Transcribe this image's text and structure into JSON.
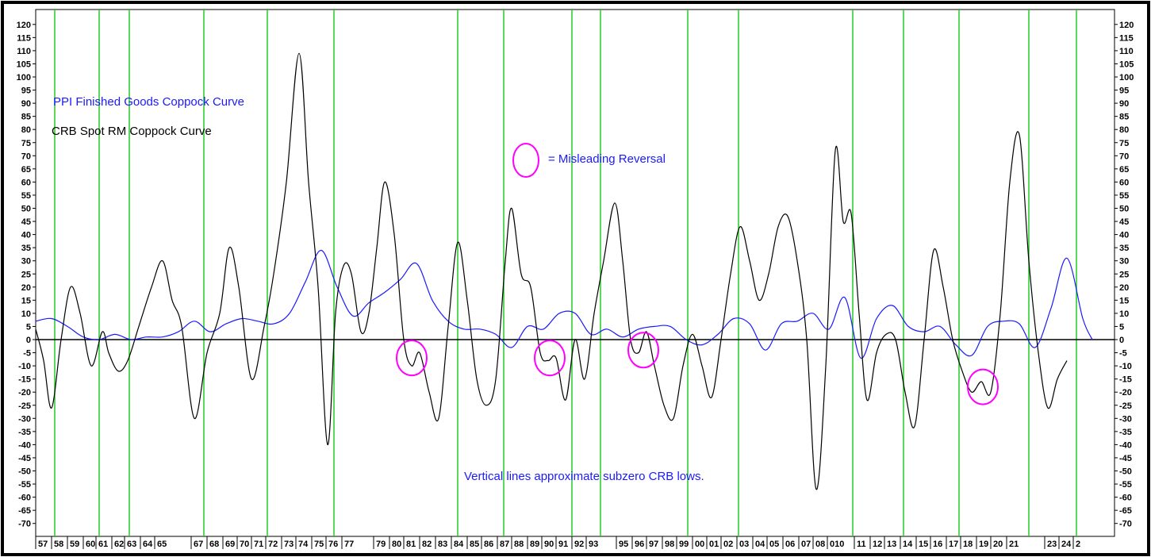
{
  "chart_data": {
    "type": "line",
    "title": "",
    "xlabel": "",
    "ylabel": "",
    "ylim": [
      -72,
      122
    ],
    "y_ticks": [
      120,
      115,
      110,
      105,
      100,
      95,
      90,
      85,
      80,
      75,
      70,
      65,
      60,
      55,
      50,
      45,
      40,
      35,
      30,
      25,
      20,
      15,
      10,
      5,
      0,
      -5,
      -10,
      -15,
      -20,
      -25,
      -30,
      -35,
      -40,
      -45,
      -50,
      -55,
      -60,
      -65,
      -70
    ],
    "x_range": [
      1957,
      2025
    ],
    "x_tick_labels": [
      {
        "label": "57",
        "x": 1957.0
      },
      {
        "label": "58",
        "x": 1958.0
      },
      {
        "label": "59",
        "x": 1959.0
      },
      {
        "label": "60",
        "x": 1960.0
      },
      {
        "label": "61",
        "x": 1960.8
      },
      {
        "label": "62",
        "x": 1961.8
      },
      {
        "label": "63",
        "x": 1962.6
      },
      {
        "label": "64",
        "x": 1963.6
      },
      {
        "label": "65",
        "x": 1964.5
      },
      {
        "label": "67",
        "x": 1966.8
      },
      {
        "label": "68",
        "x": 1967.8
      },
      {
        "label": "69",
        "x": 1968.8
      },
      {
        "label": "70",
        "x": 1969.7
      },
      {
        "label": "71",
        "x": 1970.6
      },
      {
        "label": "72",
        "x": 1971.5
      },
      {
        "label": "73",
        "x": 1972.5
      },
      {
        "label": "74",
        "x": 1973.4
      },
      {
        "label": "75",
        "x": 1974.4
      },
      {
        "label": "76",
        "x": 1975.3
      },
      {
        "label": "77",
        "x": 1976.3
      },
      {
        "label": "79",
        "x": 1978.3
      },
      {
        "label": "80",
        "x": 1979.3
      },
      {
        "label": "81",
        "x": 1980.2
      },
      {
        "label": "82",
        "x": 1981.2
      },
      {
        "label": "83",
        "x": 1982.2
      },
      {
        "label": "84",
        "x": 1983.2
      },
      {
        "label": "85",
        "x": 1984.2
      },
      {
        "label": "86",
        "x": 1985.1
      },
      {
        "label": "87",
        "x": 1986.1
      },
      {
        "label": "88",
        "x": 1987.0
      },
      {
        "label": "89",
        "x": 1988.0
      },
      {
        "label": "90",
        "x": 1988.9
      },
      {
        "label": "91",
        "x": 1989.8
      },
      {
        "label": "92",
        "x": 1990.8
      },
      {
        "label": "93",
        "x": 1991.7
      },
      {
        "label": "95",
        "x": 1993.6
      },
      {
        "label": "96",
        "x": 1994.6
      },
      {
        "label": "97",
        "x": 1995.5
      },
      {
        "label": "98",
        "x": 1996.5
      },
      {
        "label": "99",
        "x": 1997.4
      },
      {
        "label": "00",
        "x": 1998.4
      },
      {
        "label": "01",
        "x": 1999.3
      },
      {
        "label": "02",
        "x": 2000.2
      },
      {
        "label": "03",
        "x": 2001.2
      },
      {
        "label": "04",
        "x": 2002.2
      },
      {
        "label": "05",
        "x": 2003.1
      },
      {
        "label": "06",
        "x": 2004.1
      },
      {
        "label": "07",
        "x": 2005.1
      },
      {
        "label": "08",
        "x": 2006.0
      },
      {
        "label": "010",
        "x": 2006.9
      },
      {
        "label": "11",
        "x": 2008.6
      },
      {
        "label": "12",
        "x": 2009.6
      },
      {
        "label": "13",
        "x": 2010.5
      },
      {
        "label": "14",
        "x": 2011.5
      },
      {
        "label": "15",
        "x": 2012.5
      },
      {
        "label": "16",
        "x": 2013.4
      },
      {
        "label": "17",
        "x": 2014.4
      },
      {
        "label": "18",
        "x": 2015.3
      },
      {
        "label": "19",
        "x": 2016.3
      },
      {
        "label": "20",
        "x": 2017.2
      },
      {
        "label": "21",
        "x": 2018.2
      },
      {
        "label": "23",
        "x": 2020.6
      },
      {
        "label": "24",
        "x": 2021.5
      },
      {
        "label": "2",
        "x": 2022.4
      }
    ],
    "vertical_lines_x": [
      1958.2,
      1961.0,
      1962.9,
      1967.6,
      1971.6,
      1975.8,
      1983.6,
      1986.5,
      1990.8,
      1992.6,
      1998.1,
      2001.3,
      2008.5,
      2011.7,
      2015.2,
      2019.6,
      2022.6
    ],
    "zero_line": 0,
    "series": [
      {
        "name": "PPI Finished Goods Coppock Curve",
        "color": "#1a1aff",
        "points": [
          [
            1957.0,
            7.0
          ],
          [
            1958.0,
            8.0
          ],
          [
            1959.0,
            5.0
          ],
          [
            1960.0,
            1.0
          ],
          [
            1961.0,
            0.0
          ],
          [
            1962.0,
            2.0
          ],
          [
            1963.0,
            0.0
          ],
          [
            1964.0,
            1.0
          ],
          [
            1965.0,
            1.0
          ],
          [
            1966.0,
            3.0
          ],
          [
            1967.0,
            7.0
          ],
          [
            1968.0,
            3.0
          ],
          [
            1969.0,
            6.0
          ],
          [
            1970.0,
            8.0
          ],
          [
            1971.0,
            7.0
          ],
          [
            1972.0,
            6.0
          ],
          [
            1973.0,
            10.0
          ],
          [
            1974.0,
            22.0
          ],
          [
            1975.0,
            34.0
          ],
          [
            1976.0,
            20.0
          ],
          [
            1977.0,
            9.0
          ],
          [
            1978.0,
            14.0
          ],
          [
            1979.0,
            18.0
          ],
          [
            1980.0,
            23.0
          ],
          [
            1981.0,
            29.0
          ],
          [
            1982.0,
            15.0
          ],
          [
            1983.0,
            7.0
          ],
          [
            1984.0,
            4.0
          ],
          [
            1985.0,
            4.0
          ],
          [
            1986.0,
            2.0
          ],
          [
            1987.0,
            -3.0
          ],
          [
            1988.0,
            5.0
          ],
          [
            1989.0,
            4.0
          ],
          [
            1990.0,
            10.0
          ],
          [
            1991.0,
            10.0
          ],
          [
            1992.0,
            2.0
          ],
          [
            1993.0,
            4.0
          ],
          [
            1994.0,
            1.0
          ],
          [
            1995.0,
            4.0
          ],
          [
            1996.0,
            5.0
          ],
          [
            1997.0,
            5.0
          ],
          [
            1998.0,
            0.0
          ],
          [
            1999.0,
            -2.0
          ],
          [
            2000.0,
            2.0
          ],
          [
            2001.0,
            8.0
          ],
          [
            2002.0,
            6.0
          ],
          [
            2003.0,
            -4.0
          ],
          [
            2004.0,
            6.0
          ],
          [
            2005.0,
            7.0
          ],
          [
            2006.0,
            10.0
          ],
          [
            2007.0,
            4.0
          ],
          [
            2008.0,
            16.0
          ],
          [
            2009.0,
            -7.0
          ],
          [
            2010.0,
            8.0
          ],
          [
            2011.0,
            13.0
          ],
          [
            2012.0,
            5.0
          ],
          [
            2013.0,
            3.0
          ],
          [
            2014.0,
            5.0
          ],
          [
            2015.0,
            -2.0
          ],
          [
            2016.0,
            -6.0
          ],
          [
            2017.0,
            5.0
          ],
          [
            2018.0,
            7.0
          ],
          [
            2019.0,
            6.0
          ],
          [
            2020.0,
            -3.0
          ],
          [
            2021.0,
            12.0
          ],
          [
            2022.0,
            31.0
          ],
          [
            2023.0,
            8.0
          ],
          [
            2023.6,
            0.0
          ]
        ]
      },
      {
        "name": "CRB Spot RM Coppock Curve",
        "color": "#000000",
        "points": [
          [
            1957.0,
            4.0
          ],
          [
            1957.5,
            -8.0
          ],
          [
            1958.0,
            -26.0
          ],
          [
            1958.6,
            0.0
          ],
          [
            1959.2,
            20.0
          ],
          [
            1959.8,
            10.0
          ],
          [
            1960.5,
            -10.0
          ],
          [
            1961.2,
            3.0
          ],
          [
            1961.6,
            -5.0
          ],
          [
            1962.2,
            -12.0
          ],
          [
            1962.8,
            -8.0
          ],
          [
            1963.5,
            5.0
          ],
          [
            1964.3,
            20.0
          ],
          [
            1965.0,
            30.0
          ],
          [
            1965.6,
            15.0
          ],
          [
            1966.2,
            5.0
          ],
          [
            1967.0,
            -30.0
          ],
          [
            1967.8,
            -5.0
          ],
          [
            1968.6,
            10.0
          ],
          [
            1969.2,
            35.0
          ],
          [
            1969.8,
            20.0
          ],
          [
            1970.6,
            -15.0
          ],
          [
            1971.4,
            5.0
          ],
          [
            1972.0,
            25.0
          ],
          [
            1972.8,
            60.0
          ],
          [
            1973.6,
            109.0
          ],
          [
            1974.2,
            60.0
          ],
          [
            1974.8,
            20.0
          ],
          [
            1975.4,
            -40.0
          ],
          [
            1975.9,
            10.0
          ],
          [
            1976.4,
            28.0
          ],
          [
            1976.9,
            25.0
          ],
          [
            1977.5,
            3.0
          ],
          [
            1978.0,
            10.0
          ],
          [
            1978.5,
            35.0
          ],
          [
            1979.0,
            60.0
          ],
          [
            1979.6,
            40.0
          ],
          [
            1980.2,
            0.0
          ],
          [
            1980.7,
            -10.0
          ],
          [
            1981.2,
            -5.0
          ],
          [
            1981.8,
            -20.0
          ],
          [
            1982.4,
            -30.0
          ],
          [
            1983.0,
            5.0
          ],
          [
            1983.6,
            37.0
          ],
          [
            1984.2,
            15.0
          ],
          [
            1984.8,
            -15.0
          ],
          [
            1985.4,
            -25.0
          ],
          [
            1986.0,
            -15.0
          ],
          [
            1986.6,
            30.0
          ],
          [
            1987.0,
            50.0
          ],
          [
            1987.6,
            25.0
          ],
          [
            1988.2,
            20.0
          ],
          [
            1988.8,
            -5.0
          ],
          [
            1989.3,
            -8.0
          ],
          [
            1989.8,
            -7.0
          ],
          [
            1990.4,
            -23.0
          ],
          [
            1991.0,
            0.0
          ],
          [
            1991.6,
            -15.0
          ],
          [
            1992.2,
            10.0
          ],
          [
            1992.8,
            30.0
          ],
          [
            1993.5,
            52.0
          ],
          [
            1994.0,
            30.0
          ],
          [
            1994.5,
            0.0
          ],
          [
            1995.0,
            -5.0
          ],
          [
            1995.5,
            3.0
          ],
          [
            1996.0,
            -10.0
          ],
          [
            1996.6,
            -25.0
          ],
          [
            1997.2,
            -30.0
          ],
          [
            1997.8,
            -10.0
          ],
          [
            1998.4,
            2.0
          ],
          [
            1999.0,
            -10.0
          ],
          [
            1999.6,
            -22.0
          ],
          [
            2000.2,
            0.0
          ],
          [
            2000.8,
            25.0
          ],
          [
            2001.4,
            43.0
          ],
          [
            2002.0,
            30.0
          ],
          [
            2002.6,
            15.0
          ],
          [
            2003.2,
            25.0
          ],
          [
            2003.8,
            43.0
          ],
          [
            2004.4,
            47.0
          ],
          [
            2005.0,
            30.0
          ],
          [
            2005.6,
            0.0
          ],
          [
            2006.2,
            -57.0
          ],
          [
            2006.8,
            -10.0
          ],
          [
            2007.4,
            72.0
          ],
          [
            2007.9,
            45.0
          ],
          [
            2008.4,
            48.0
          ],
          [
            2008.9,
            10.0
          ],
          [
            2009.4,
            -23.0
          ],
          [
            2010.0,
            -5.0
          ],
          [
            2010.6,
            2.0
          ],
          [
            2011.2,
            0.0
          ],
          [
            2011.8,
            -20.0
          ],
          [
            2012.4,
            -33.0
          ],
          [
            2013.0,
            0.0
          ],
          [
            2013.6,
            34.0
          ],
          [
            2014.2,
            20.0
          ],
          [
            2014.8,
            0.0
          ],
          [
            2015.4,
            -12.0
          ],
          [
            2016.0,
            -20.0
          ],
          [
            2016.6,
            -16.0
          ],
          [
            2017.2,
            -20.0
          ],
          [
            2017.8,
            10.0
          ],
          [
            2018.4,
            60.0
          ],
          [
            2019.0,
            78.0
          ],
          [
            2019.6,
            30.0
          ],
          [
            2020.2,
            -5.0
          ],
          [
            2020.8,
            -26.0
          ],
          [
            2021.4,
            -15.0
          ],
          [
            2022.0,
            -8.0
          ]
        ]
      }
    ],
    "annotations": {
      "ppi_label": "PPI Finished Goods Coppock Curve",
      "crb_label": "CRB Spot RM Coppock Curve",
      "misleading_label": "= Misleading Reversal",
      "vertical_note": "Vertical lines approximate subzero CRB lows."
    },
    "misleading_reversal_circles": [
      {
        "x": 1980.7,
        "y": -7.0
      },
      {
        "x": 1989.4,
        "y": -7.0
      },
      {
        "x": 1995.3,
        "y": -4.0
      },
      {
        "x": 2016.7,
        "y": -18.0
      }
    ],
    "colors": {
      "vertical_lines": "#22cc22",
      "circles": "#ff00ff",
      "ppi": "#1a1aff",
      "crb": "#000000"
    },
    "grid": false,
    "legend": "top-left"
  }
}
